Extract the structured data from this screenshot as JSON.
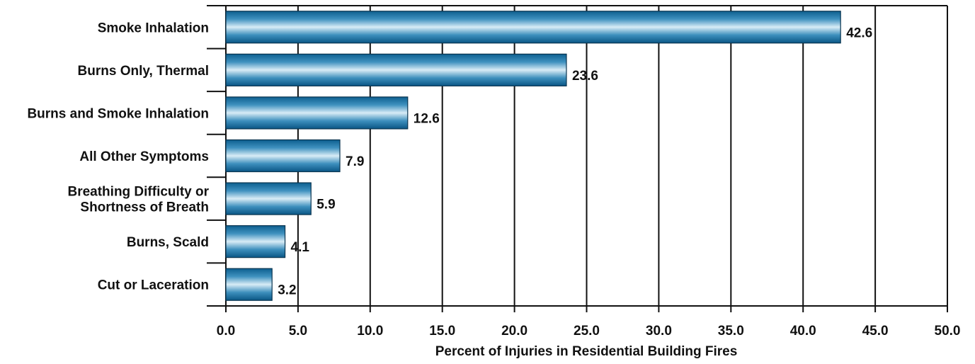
{
  "chart_data": {
    "type": "bar",
    "orientation": "horizontal",
    "categories": [
      "Smoke Inhalation",
      "Burns Only, Thermal",
      "Burns and Smoke Inhalation",
      "All Other Symptoms",
      "Breathing Difficulty or\nShortness of Breath",
      "Burns, Scald",
      "Cut or Laceration"
    ],
    "values": [
      42.6,
      23.6,
      12.6,
      7.9,
      5.9,
      4.1,
      3.2
    ],
    "color": "#1a6e9e",
    "xlabel": "Percent of Injuries in Residential Building Fires",
    "xlim": [
      0,
      50
    ],
    "xticks": [
      {
        "value": 0,
        "label": "0.0"
      },
      {
        "value": 5,
        "label": "5.0"
      },
      {
        "value": 10,
        "label": "10.0"
      },
      {
        "value": 15,
        "label": "15.0"
      },
      {
        "value": 20,
        "label": "20.0"
      },
      {
        "value": 25,
        "label": "25.0"
      },
      {
        "value": 30,
        "label": "30.0"
      },
      {
        "value": 35,
        "label": "35.0"
      },
      {
        "value": 40,
        "label": "40.0"
      },
      {
        "value": 45,
        "label": "45.0"
      },
      {
        "value": 50,
        "label": "50.0"
      }
    ],
    "grid": true
  }
}
